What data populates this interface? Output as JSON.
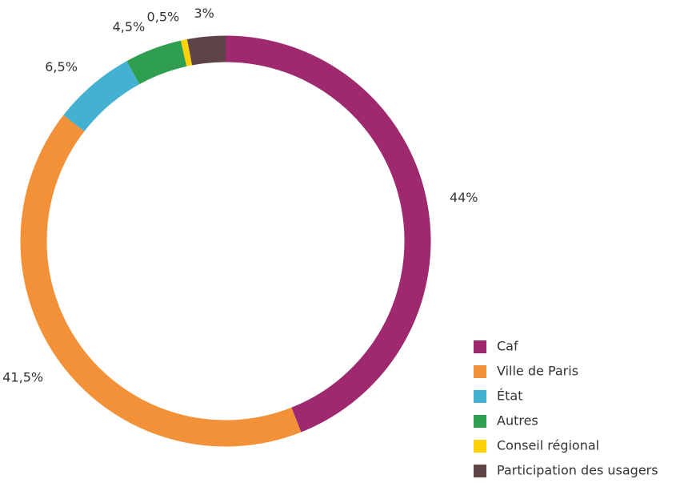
{
  "chart_data": {
    "type": "donut",
    "categories": [
      "Caf",
      "Ville de Paris",
      "État",
      "Autres",
      "Conseil régional",
      "Participation des usagers"
    ],
    "values": [
      44,
      41.5,
      6.5,
      4.5,
      0.5,
      3
    ],
    "value_labels": [
      "44%",
      "41,5%",
      "6,5%",
      "4,5%",
      "0,5%",
      "3%"
    ],
    "colors": [
      "#9e296e",
      "#f39139",
      "#43b1cf",
      "#2f9e50",
      "#fdd20a",
      "#5e4446"
    ]
  }
}
